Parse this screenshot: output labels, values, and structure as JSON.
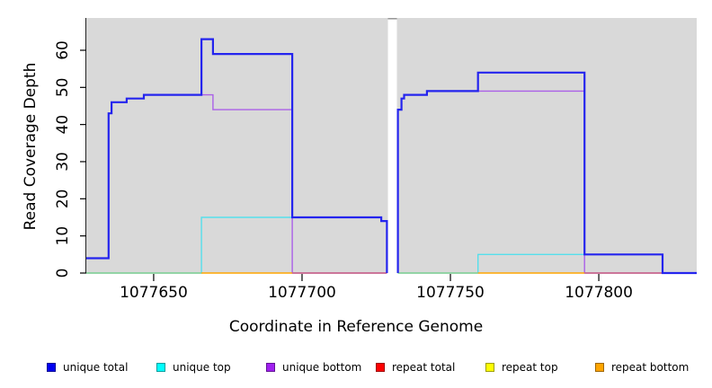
{
  "chart_data": {
    "type": "line",
    "subtype": "step-coverage-plot",
    "title": "",
    "xlabel": "Coordinate in Reference Genome",
    "ylabel": "Read Coverage Depth",
    "xlim": [
      1077627.3,
      1077833.0
    ],
    "ylim": [
      0,
      68.7
    ],
    "x_ticks": [
      1077650,
      1077700,
      1077750,
      1077800
    ],
    "y_ticks": [
      0,
      10,
      20,
      30,
      40,
      50,
      60
    ],
    "grid": "off",
    "panel_background": "#d9d9d9",
    "axis_color": "#000000",
    "no_data_gap": {
      "from": 1077728.6,
      "to": 1077732.3
    },
    "legend_position": "bottom",
    "legend": [
      {
        "label": "unique total",
        "color": "#0000f0"
      },
      {
        "label": "unique top",
        "color": "#00ffff"
      },
      {
        "label": "unique bottom",
        "color": "#a020f0"
      },
      {
        "label": "repeat total",
        "color": "#ff0000"
      },
      {
        "label": "repeat top",
        "color": "#ffff00"
      },
      {
        "label": "repeat bottom",
        "color": "#ffa500"
      }
    ],
    "draw": [
      {
        "name": "unique-bottom-left",
        "series": "unique bottom",
        "color": "#aa60e8",
        "width": 1.4,
        "path": [
          [
            1077627.3,
            4
          ],
          [
            1077634.8,
            4
          ],
          [
            1077634.8,
            43
          ],
          [
            1077635.8,
            43
          ],
          [
            1077635.8,
            46
          ],
          [
            1077640.9,
            46
          ],
          [
            1077640.9,
            47
          ],
          [
            1077646.7,
            47
          ],
          [
            1077646.7,
            48
          ],
          [
            1077670.0,
            48
          ],
          [
            1077670.0,
            44
          ],
          [
            1077696.7,
            44
          ],
          [
            1077696.7,
            0
          ],
          [
            1077728.6,
            0
          ]
        ]
      },
      {
        "name": "unique-bottom-right",
        "series": "unique bottom",
        "color": "#aa60e8",
        "width": 1.4,
        "path": [
          [
            1077732.3,
            0
          ],
          [
            1077732.3,
            44
          ],
          [
            1077733.5,
            44
          ],
          [
            1077733.5,
            47
          ],
          [
            1077734.4,
            47
          ],
          [
            1077734.4,
            48
          ],
          [
            1077742.1,
            48
          ],
          [
            1077742.1,
            49
          ],
          [
            1077795.2,
            49
          ],
          [
            1077795.2,
            0
          ],
          [
            1077833.0,
            0
          ]
        ]
      },
      {
        "name": "unique-top-left",
        "series": "unique top",
        "color": "#55dfec",
        "width": 1.4,
        "path": [
          [
            1077627.3,
            0
          ],
          [
            1077666.1,
            0
          ],
          [
            1077666.1,
            15
          ],
          [
            1077726.7,
            15
          ],
          [
            1077726.7,
            14
          ],
          [
            1077728.6,
            14
          ],
          [
            1077728.6,
            0
          ]
        ]
      },
      {
        "name": "unique-top-right",
        "series": "unique top",
        "color": "#55dfec",
        "width": 1.4,
        "path": [
          [
            1077732.3,
            0
          ],
          [
            1077759.3,
            0
          ],
          [
            1077759.3,
            5
          ],
          [
            1077821.5,
            5
          ],
          [
            1077821.5,
            0
          ],
          [
            1077833.0,
            0
          ]
        ]
      },
      {
        "name": "zero-baseline-blend-left-1",
        "series": "repeat lines at zero",
        "color": "#8fce8f",
        "width": 1.6,
        "path": [
          [
            1077627.3,
            0
          ],
          [
            1077666.1,
            0
          ]
        ]
      },
      {
        "name": "zero-baseline-blend-left-2",
        "series": "repeat bottom at zero",
        "color": "#ffa500",
        "width": 1.6,
        "path": [
          [
            1077666.1,
            0
          ],
          [
            1077696.7,
            0
          ]
        ]
      },
      {
        "name": "zero-baseline-blend-left-3",
        "series": "repeat total at zero",
        "color": "#cc6680",
        "width": 1.6,
        "path": [
          [
            1077696.7,
            0
          ],
          [
            1077728.6,
            0
          ]
        ]
      },
      {
        "name": "zero-baseline-blend-right-1",
        "series": "repeat lines at zero",
        "color": "#8fce8f",
        "width": 1.6,
        "path": [
          [
            1077732.3,
            0
          ],
          [
            1077759.3,
            0
          ]
        ]
      },
      {
        "name": "zero-baseline-blend-right-2",
        "series": "repeat bottom at zero",
        "color": "#ffa500",
        "width": 1.6,
        "path": [
          [
            1077759.3,
            0
          ],
          [
            1077795.2,
            0
          ]
        ]
      },
      {
        "name": "zero-baseline-blend-right-3",
        "series": "repeat total at zero",
        "color": "#cc6680",
        "width": 1.6,
        "path": [
          [
            1077795.2,
            0
          ],
          [
            1077821.5,
            0
          ]
        ]
      },
      {
        "name": "zero-baseline-blend-right-4",
        "series": "unique lines at zero",
        "color": "#6a5ae0",
        "width": 1.6,
        "path": [
          [
            1077821.5,
            0
          ],
          [
            1077833.0,
            0
          ]
        ]
      },
      {
        "name": "unique-total-left",
        "series": "unique total",
        "color": "#2424ee",
        "width": 2.2,
        "path": [
          [
            1077627.3,
            4
          ],
          [
            1077634.8,
            4
          ],
          [
            1077634.8,
            43
          ],
          [
            1077635.8,
            43
          ],
          [
            1077635.8,
            46
          ],
          [
            1077640.9,
            46
          ],
          [
            1077640.9,
            47
          ],
          [
            1077646.7,
            47
          ],
          [
            1077646.7,
            48
          ],
          [
            1077666.1,
            48
          ],
          [
            1077666.1,
            63
          ],
          [
            1077670.0,
            63
          ],
          [
            1077670.0,
            59
          ],
          [
            1077696.7,
            59
          ],
          [
            1077696.7,
            15
          ],
          [
            1077726.7,
            15
          ],
          [
            1077726.7,
            14
          ],
          [
            1077728.6,
            14
          ],
          [
            1077728.6,
            0
          ]
        ]
      },
      {
        "name": "unique-total-right",
        "series": "unique total",
        "color": "#2424ee",
        "width": 2.2,
        "path": [
          [
            1077732.3,
            0
          ],
          [
            1077732.3,
            44
          ],
          [
            1077733.5,
            44
          ],
          [
            1077733.5,
            47
          ],
          [
            1077734.4,
            47
          ],
          [
            1077734.4,
            48
          ],
          [
            1077742.1,
            48
          ],
          [
            1077742.1,
            49
          ],
          [
            1077759.3,
            49
          ],
          [
            1077759.3,
            54
          ],
          [
            1077795.2,
            54
          ],
          [
            1077795.2,
            5
          ],
          [
            1077821.5,
            5
          ],
          [
            1077821.5,
            0
          ],
          [
            1077833.0,
            0
          ]
        ]
      }
    ]
  },
  "legend_item_lefts": [
    52,
    174,
    296,
    418,
    540,
    662
  ]
}
